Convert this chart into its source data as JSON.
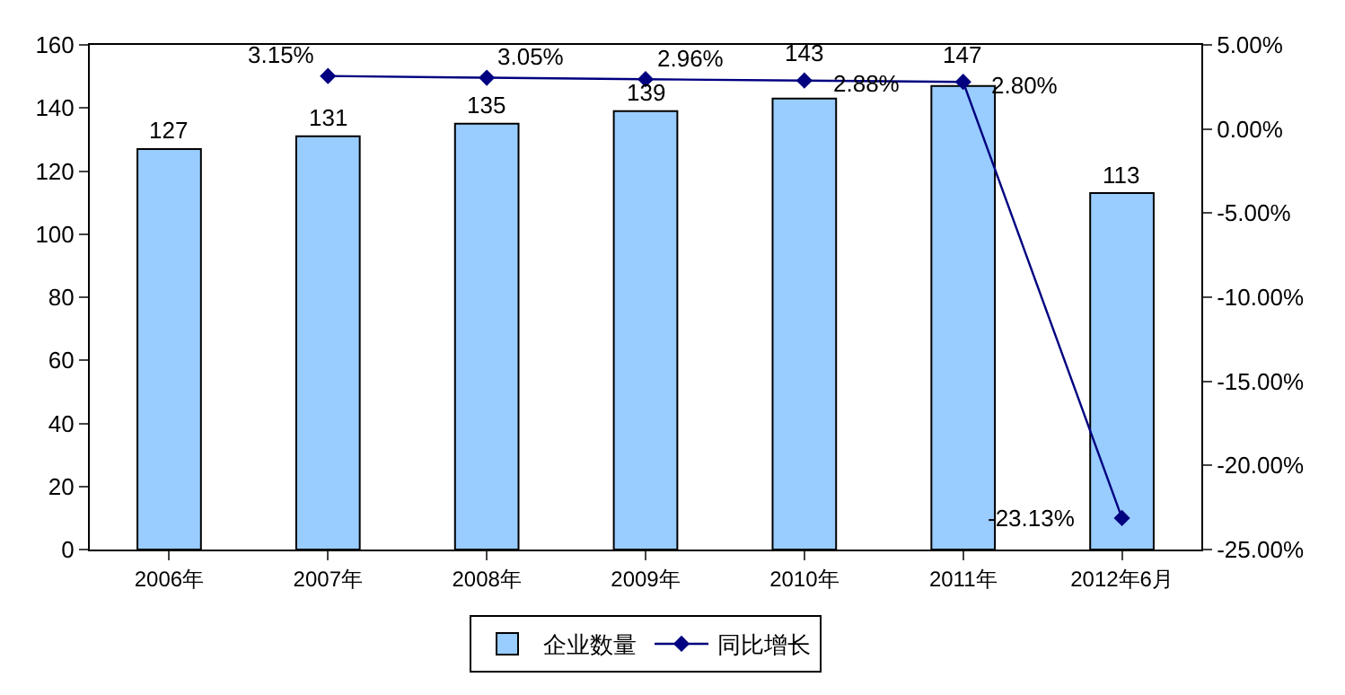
{
  "chart_data": {
    "type": "bar",
    "categories": [
      "2006年",
      "2007年",
      "2008年",
      "2009年",
      "2010年",
      "2011年",
      "2012年6月"
    ],
    "series": [
      {
        "name": "企业数量",
        "color": "#99ccff",
        "values": [
          127,
          131,
          135,
          139,
          143,
          147,
          113
        ]
      },
      {
        "name": "同比增长",
        "type": "line",
        "axis": "y2",
        "color": "#000080",
        "marker": "diamond",
        "values": [
          null,
          3.15,
          3.05,
          2.96,
          2.88,
          2.8,
          -23.13
        ],
        "value_labels": [
          null,
          "3.15%",
          "3.05%",
          "2.96%",
          "2.88%",
          "2.80%",
          "-23.13%"
        ]
      }
    ],
    "data_labels": true,
    "ylim": [
      0,
      160
    ],
    "yticks": [
      0,
      20,
      40,
      60,
      80,
      100,
      120,
      140,
      160
    ],
    "y2lim": [
      -25,
      5
    ],
    "y2ticks": [
      {
        "value": -25,
        "label": "-25.00%"
      },
      {
        "value": -20,
        "label": "-20.00%"
      },
      {
        "value": -15,
        "label": "-15.00%"
      },
      {
        "value": -10,
        "label": "-10.00%"
      },
      {
        "value": -5,
        "label": "-5.00%"
      },
      {
        "value": 0,
        "label": "0.00%"
      },
      {
        "value": 5,
        "label": "5.00%"
      }
    ],
    "legend": "bottom"
  }
}
